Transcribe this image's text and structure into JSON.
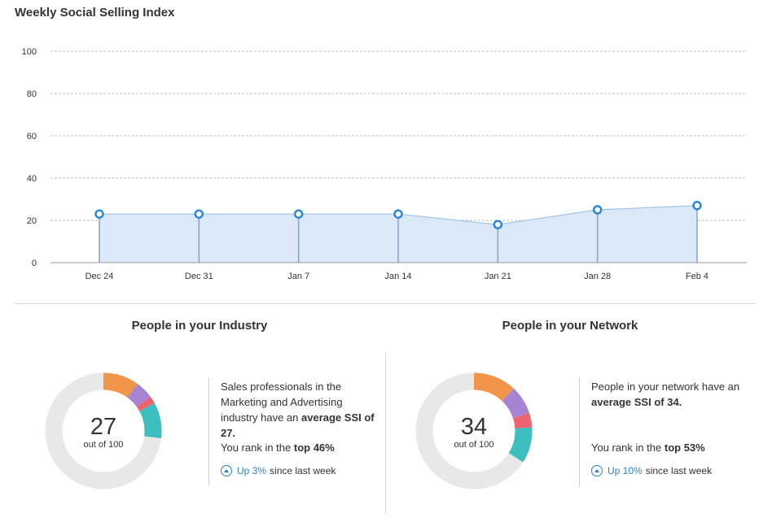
{
  "header": {
    "title": "Weekly Social Selling Index"
  },
  "chart_data": {
    "type": "area",
    "title": "Weekly Social Selling Index",
    "categories": [
      "Dec 24",
      "Dec 31",
      "Jan 7",
      "Jan 14",
      "Jan 21",
      "Jan 28",
      "Feb 4"
    ],
    "series": [
      {
        "values": [
          23,
          23,
          23,
          23,
          18,
          25,
          27
        ]
      }
    ],
    "yticks": [
      "0",
      "20",
      "40",
      "60",
      "80",
      "100"
    ],
    "ylim": [
      0,
      100
    ],
    "grid": "horizontal dashed",
    "colors": {
      "line": "#9ec4ea",
      "fill": "#dbe8f8",
      "marker": "#2e87d6",
      "grid": "#bdbdbd"
    }
  },
  "industry": {
    "title": "People in your Industry",
    "score": "27",
    "out_of": "out of 100",
    "text1": "Sales professionals in the Marketing and Advertising industry have an ",
    "bold1": "average SSI of 27.",
    "text2": "You rank in the ",
    "bold2": "top 46%",
    "trend_value": "Up 3%",
    "trend_text": "since last week",
    "segments": [
      {
        "value": 10,
        "color": "#f0954a"
      },
      {
        "value": 5,
        "color": "#a783d3"
      },
      {
        "value": 2,
        "color": "#ee6370"
      },
      {
        "value": 10,
        "color": "#3ebfbf"
      }
    ]
  },
  "network": {
    "title": "People in your Network",
    "score": "34",
    "out_of": "out of 100",
    "text1": "People in your network have an ",
    "bold1": "average SSI of 34.",
    "text2": "You rank in the ",
    "bold2": "top 53%",
    "trend_value": "Up 10%",
    "trend_text": "since last week",
    "segments": [
      {
        "value": 12,
        "color": "#f0954a"
      },
      {
        "value": 8,
        "color": "#a783d3"
      },
      {
        "value": 4,
        "color": "#ee6370"
      },
      {
        "value": 10,
        "color": "#3ebfbf"
      }
    ]
  },
  "colors": {
    "ring_bg": "#e8e8e8",
    "accent": "#2e7fc3"
  }
}
